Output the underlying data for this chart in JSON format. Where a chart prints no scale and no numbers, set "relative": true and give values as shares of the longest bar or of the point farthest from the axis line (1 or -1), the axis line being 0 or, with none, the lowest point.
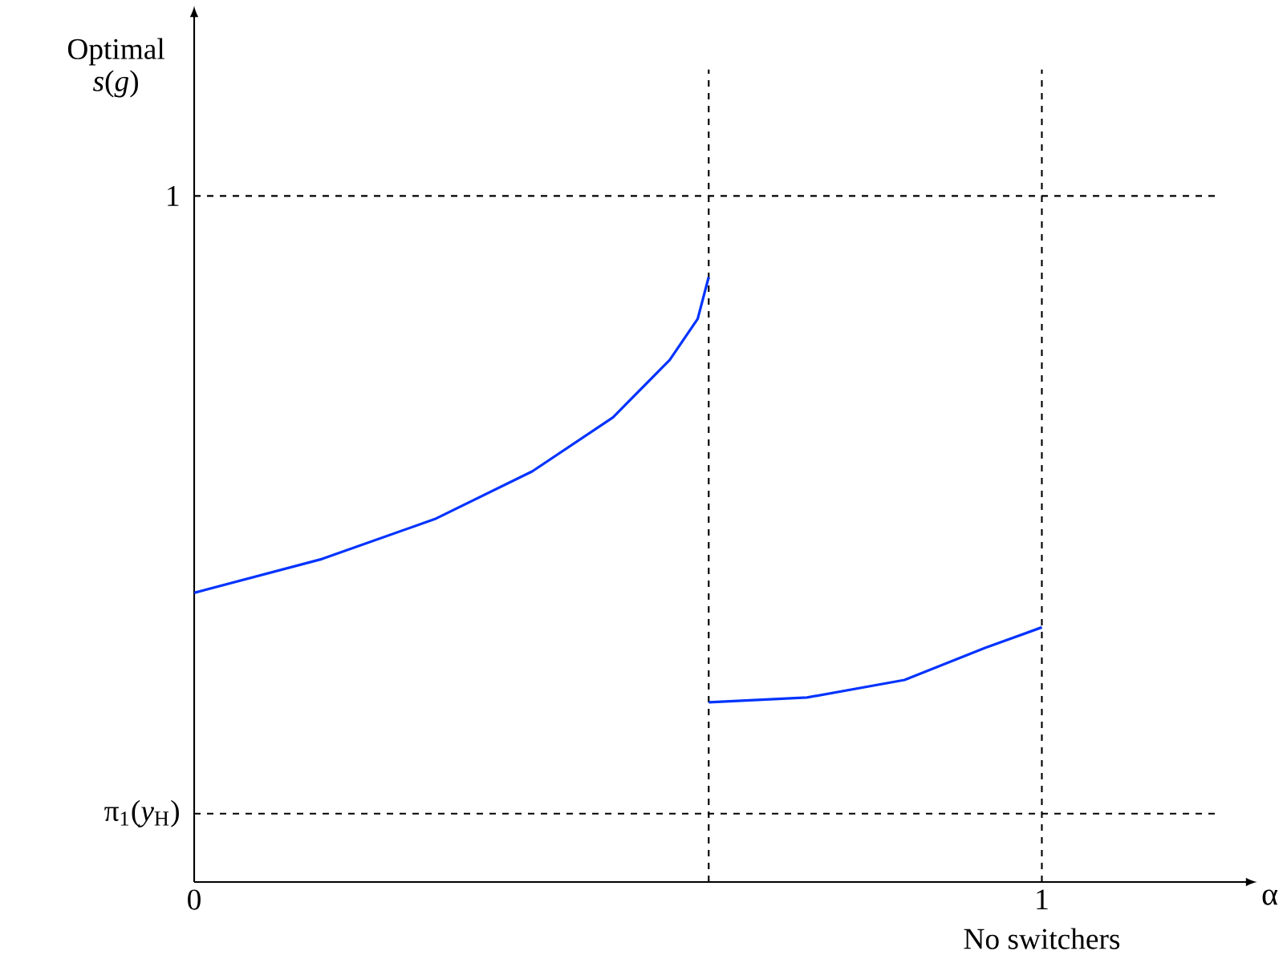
{
  "chart_data": {
    "type": "line",
    "relative": true,
    "xlabel": "α",
    "xlim": [
      0,
      1.24
    ],
    "xticks": [
      0,
      1
    ],
    "series": [
      {
        "color": "#0033ff",
        "x": [
          0,
          0.151,
          0.284,
          0.399,
          0.494,
          0.561,
          0.594,
          0.607
        ],
        "values": [
          0.478,
          0.534,
          0.6,
          0.679,
          0.768,
          0.863,
          0.931,
          1
        ]
      },
      {
        "color": "#0033ff",
        "x": [
          0.607,
          0.723,
          0.838,
          0.933,
          1.0
        ],
        "values": [
          0.297,
          0.305,
          0.334,
          0.387,
          0.421
        ]
      }
    ],
    "ref_lines": [
      {
        "axis": "y",
        "value": 1.134,
        "label": "1",
        "line_style": "dashed"
      },
      {
        "axis": "y",
        "value": 0.113,
        "label": "π$_{1}$(*y*$_{H}$)",
        "line_style": "dashed"
      },
      {
        "axis": "x",
        "value": 0.607,
        "line_style": "dashed"
      },
      {
        "axis": "x",
        "value": 1,
        "line_style": "dashed"
      }
    ],
    "annotations": [
      "No switchers",
      "Optimal *s*(*g*)"
    ],
    "line_style": "solid"
  }
}
